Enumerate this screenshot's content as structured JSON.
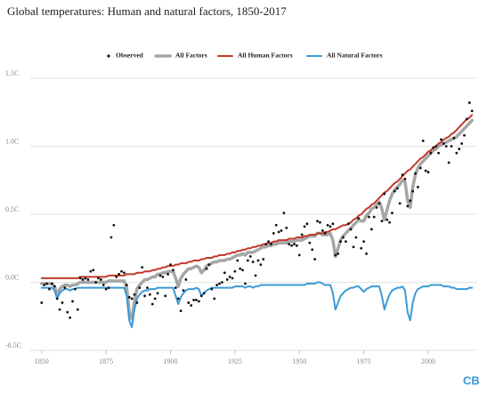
{
  "chart_data": {
    "type": "line",
    "title": "Global temperatures: Human and natural factors, 1850-2017",
    "logo": "CB",
    "grid": true,
    "legend": "top",
    "xlim": [
      1848,
      2019
    ],
    "xticks": [
      1850,
      1875,
      1900,
      1925,
      1950,
      1975,
      2000
    ],
    "ylim": [
      -0.5,
      1.5
    ],
    "yticks": [
      {
        "value": -0.5,
        "label": "-0.5C"
      },
      {
        "value": 0,
        "label": "0.0C"
      },
      {
        "value": 0.5,
        "label": "0.5C"
      },
      {
        "value": 1.0,
        "label": "1.0C"
      },
      {
        "value": 1.5,
        "label": "1.5C"
      }
    ],
    "x": [
      1850,
      1851,
      1852,
      1853,
      1854,
      1855,
      1856,
      1857,
      1858,
      1859,
      1860,
      1861,
      1862,
      1863,
      1864,
      1865,
      1866,
      1867,
      1868,
      1869,
      1870,
      1871,
      1872,
      1873,
      1874,
      1875,
      1876,
      1877,
      1878,
      1879,
      1880,
      1881,
      1882,
      1883,
      1884,
      1885,
      1886,
      1887,
      1888,
      1889,
      1890,
      1891,
      1892,
      1893,
      1894,
      1895,
      1896,
      1897,
      1898,
      1899,
      1900,
      1901,
      1902,
      1903,
      1904,
      1905,
      1906,
      1907,
      1908,
      1909,
      1910,
      1911,
      1912,
      1913,
      1914,
      1915,
      1916,
      1917,
      1918,
      1919,
      1920,
      1921,
      1922,
      1923,
      1924,
      1925,
      1926,
      1927,
      1928,
      1929,
      1930,
      1931,
      1932,
      1933,
      1934,
      1935,
      1936,
      1937,
      1938,
      1939,
      1940,
      1941,
      1942,
      1943,
      1944,
      1945,
      1946,
      1947,
      1948,
      1949,
      1950,
      1951,
      1952,
      1953,
      1954,
      1955,
      1956,
      1957,
      1958,
      1959,
      1960,
      1961,
      1962,
      1963,
      1964,
      1965,
      1966,
      1967,
      1968,
      1969,
      1970,
      1971,
      1972,
      1973,
      1974,
      1975,
      1976,
      1977,
      1978,
      1979,
      1980,
      1981,
      1982,
      1983,
      1984,
      1985,
      1986,
      1987,
      1988,
      1989,
      1990,
      1991,
      1992,
      1993,
      1994,
      1995,
      1996,
      1997,
      1998,
      1999,
      2000,
      2001,
      2002,
      2003,
      2004,
      2005,
      2006,
      2007,
      2008,
      2009,
      2010,
      2011,
      2012,
      2013,
      2014,
      2015,
      2016,
      2017
    ],
    "series": [
      {
        "name": "Observed",
        "type": "scatter",
        "color": "#111111",
        "values": [
          -0.15,
          -0.02,
          -0.01,
          -0.05,
          -0.01,
          -0.03,
          -0.12,
          -0.2,
          -0.15,
          -0.04,
          -0.22,
          -0.26,
          -0.14,
          -0.05,
          -0.2,
          0.03,
          0.02,
          0.03,
          0.02,
          0.08,
          0.09,
          0.0,
          0.03,
          0.02,
          -0.02,
          -0.05,
          -0.04,
          0.33,
          0.42,
          0.04,
          0.06,
          0.08,
          0.07,
          -0.02,
          -0.11,
          -0.12,
          -0.09,
          -0.15,
          -0.04,
          0.11,
          -0.1,
          -0.04,
          -0.09,
          -0.16,
          -0.12,
          -0.08,
          0.05,
          0.04,
          -0.1,
          0.06,
          0.13,
          0.09,
          -0.04,
          -0.12,
          -0.21,
          -0.06,
          0.02,
          -0.15,
          -0.17,
          -0.13,
          -0.13,
          -0.14,
          -0.1,
          -0.08,
          0.1,
          0.13,
          -0.05,
          -0.12,
          -0.02,
          -0.01,
          0.0,
          0.07,
          0.02,
          0.04,
          0.03,
          0.08,
          0.16,
          0.1,
          0.09,
          -0.01,
          0.16,
          0.19,
          0.15,
          0.05,
          0.16,
          0.13,
          0.17,
          0.28,
          0.3,
          0.28,
          0.36,
          0.42,
          0.37,
          0.38,
          0.51,
          0.4,
          0.28,
          0.27,
          0.28,
          0.27,
          0.2,
          0.35,
          0.41,
          0.43,
          0.29,
          0.24,
          0.17,
          0.45,
          0.44,
          0.38,
          0.36,
          0.42,
          0.41,
          0.43,
          0.2,
          0.21,
          0.3,
          0.33,
          0.3,
          0.43,
          0.39,
          0.26,
          0.33,
          0.47,
          0.25,
          0.3,
          0.21,
          0.48,
          0.39,
          0.48,
          0.55,
          0.58,
          0.45,
          0.65,
          0.46,
          0.44,
          0.51,
          0.67,
          0.69,
          0.58,
          0.79,
          0.76,
          0.56,
          0.6,
          0.67,
          0.8,
          0.7,
          0.84,
          1.04,
          0.82,
          0.81,
          0.95,
          0.99,
          1.0,
          0.95,
          1.05,
          1.02,
          1.0,
          0.88,
          1.0,
          1.06,
          0.95,
          0.98,
          1.02,
          1.08,
          1.2,
          1.32,
          1.26
        ]
      },
      {
        "name": "All Factors",
        "type": "line",
        "color": "#a6a6a6",
        "values": [
          -0.01,
          -0.01,
          -0.01,
          -0.01,
          -0.01,
          -0.03,
          -0.09,
          -0.05,
          -0.03,
          -0.02,
          -0.02,
          -0.03,
          -0.02,
          -0.02,
          -0.01,
          0.0,
          0.0,
          0.0,
          0.0,
          0.0,
          0.0,
          0.0,
          0.0,
          0.0,
          0.0,
          0.0,
          0.01,
          0.01,
          0.01,
          0.01,
          0.01,
          0.01,
          0.01,
          -0.04,
          -0.22,
          -0.27,
          -0.14,
          -0.05,
          -0.02,
          0.0,
          0.02,
          0.02,
          0.03,
          0.04,
          0.04,
          0.06,
          0.06,
          0.07,
          0.07,
          0.08,
          0.08,
          0.08,
          0.03,
          -0.03,
          0.03,
          0.06,
          0.08,
          0.1,
          0.1,
          0.11,
          0.12,
          0.11,
          0.07,
          0.09,
          0.12,
          0.13,
          0.14,
          0.15,
          0.15,
          0.16,
          0.16,
          0.16,
          0.17,
          0.17,
          0.18,
          0.19,
          0.2,
          0.2,
          0.21,
          0.2,
          0.22,
          0.22,
          0.22,
          0.23,
          0.24,
          0.25,
          0.26,
          0.26,
          0.27,
          0.27,
          0.28,
          0.28,
          0.29,
          0.29,
          0.29,
          0.29,
          0.3,
          0.3,
          0.3,
          0.31,
          0.31,
          0.31,
          0.32,
          0.33,
          0.34,
          0.34,
          0.34,
          0.36,
          0.36,
          0.35,
          0.35,
          0.35,
          0.36,
          0.31,
          0.19,
          0.25,
          0.31,
          0.34,
          0.36,
          0.38,
          0.4,
          0.42,
          0.44,
          0.46,
          0.45,
          0.45,
          0.49,
          0.51,
          0.54,
          0.55,
          0.57,
          0.59,
          0.54,
          0.46,
          0.53,
          0.6,
          0.65,
          0.68,
          0.7,
          0.72,
          0.75,
          0.74,
          0.6,
          0.55,
          0.7,
          0.79,
          0.84,
          0.87,
          0.89,
          0.91,
          0.93,
          0.95,
          0.97,
          0.98,
          1.0,
          1.01,
          1.02,
          1.03,
          1.04,
          1.05,
          1.06,
          1.07,
          1.09,
          1.11,
          1.13,
          1.15,
          1.17,
          1.19
        ]
      },
      {
        "name": "All Human Factors",
        "type": "line",
        "color": "#c0392b",
        "values": [
          0.03,
          0.03,
          0.03,
          0.03,
          0.03,
          0.03,
          0.03,
          0.03,
          0.03,
          0.03,
          0.03,
          0.03,
          0.03,
          0.03,
          0.03,
          0.04,
          0.04,
          0.04,
          0.04,
          0.04,
          0.04,
          0.04,
          0.04,
          0.04,
          0.04,
          0.04,
          0.05,
          0.05,
          0.05,
          0.05,
          0.05,
          0.05,
          0.05,
          0.06,
          0.06,
          0.06,
          0.06,
          0.07,
          0.07,
          0.07,
          0.08,
          0.08,
          0.08,
          0.09,
          0.09,
          0.1,
          0.1,
          0.11,
          0.11,
          0.12,
          0.12,
          0.12,
          0.13,
          0.13,
          0.14,
          0.14,
          0.14,
          0.15,
          0.15,
          0.16,
          0.16,
          0.16,
          0.17,
          0.17,
          0.18,
          0.18,
          0.18,
          0.19,
          0.19,
          0.2,
          0.2,
          0.2,
          0.21,
          0.21,
          0.22,
          0.22,
          0.23,
          0.23,
          0.24,
          0.24,
          0.25,
          0.25,
          0.26,
          0.26,
          0.27,
          0.27,
          0.28,
          0.28,
          0.29,
          0.29,
          0.3,
          0.3,
          0.31,
          0.31,
          0.31,
          0.31,
          0.32,
          0.32,
          0.32,
          0.33,
          0.33,
          0.33,
          0.34,
          0.34,
          0.35,
          0.35,
          0.35,
          0.36,
          0.36,
          0.36,
          0.37,
          0.37,
          0.38,
          0.39,
          0.39,
          0.4,
          0.41,
          0.42,
          0.42,
          0.43,
          0.44,
          0.46,
          0.47,
          0.49,
          0.5,
          0.52,
          0.54,
          0.55,
          0.57,
          0.58,
          0.6,
          0.62,
          0.64,
          0.66,
          0.67,
          0.69,
          0.71,
          0.73,
          0.74,
          0.76,
          0.78,
          0.8,
          0.82,
          0.83,
          0.85,
          0.87,
          0.89,
          0.91,
          0.92,
          0.94,
          0.96,
          0.97,
          0.99,
          1.0,
          1.02,
          1.03,
          1.05,
          1.06,
          1.07,
          1.09,
          1.1,
          1.12,
          1.14,
          1.16,
          1.18,
          1.2,
          1.21,
          1.23
        ]
      },
      {
        "name": "All Natural Factors",
        "type": "line",
        "color": "#3b9ad6",
        "values": [
          -0.04,
          -0.04,
          -0.04,
          -0.04,
          -0.04,
          -0.06,
          -0.12,
          -0.08,
          -0.06,
          -0.05,
          -0.05,
          -0.06,
          -0.05,
          -0.05,
          -0.04,
          -0.04,
          -0.04,
          -0.04,
          -0.04,
          -0.04,
          -0.04,
          -0.04,
          -0.04,
          -0.04,
          -0.04,
          -0.04,
          -0.04,
          -0.04,
          -0.04,
          -0.04,
          -0.04,
          -0.04,
          -0.04,
          -0.1,
          -0.28,
          -0.33,
          -0.2,
          -0.12,
          -0.09,
          -0.07,
          -0.06,
          -0.06,
          -0.05,
          -0.05,
          -0.05,
          -0.04,
          -0.04,
          -0.04,
          -0.04,
          -0.04,
          -0.04,
          -0.04,
          -0.1,
          -0.16,
          -0.11,
          -0.08,
          -0.06,
          -0.05,
          -0.05,
          -0.05,
          -0.04,
          -0.05,
          -0.1,
          -0.08,
          -0.06,
          -0.05,
          -0.04,
          -0.04,
          -0.04,
          -0.04,
          -0.04,
          -0.04,
          -0.04,
          -0.04,
          -0.04,
          -0.03,
          -0.03,
          -0.03,
          -0.03,
          -0.04,
          -0.03,
          -0.03,
          -0.04,
          -0.03,
          -0.03,
          -0.02,
          -0.02,
          -0.02,
          -0.02,
          -0.02,
          -0.02,
          -0.02,
          -0.02,
          -0.02,
          -0.02,
          -0.02,
          -0.02,
          -0.02,
          -0.02,
          -0.02,
          -0.02,
          -0.02,
          -0.02,
          -0.01,
          -0.01,
          -0.01,
          -0.01,
          0.0,
          0.0,
          -0.01,
          -0.02,
          -0.02,
          -0.02,
          -0.08,
          -0.2,
          -0.15,
          -0.1,
          -0.08,
          -0.06,
          -0.05,
          -0.04,
          -0.04,
          -0.03,
          -0.03,
          -0.05,
          -0.07,
          -0.05,
          -0.04,
          -0.03,
          -0.03,
          -0.03,
          -0.03,
          -0.1,
          -0.2,
          -0.14,
          -0.09,
          -0.06,
          -0.05,
          -0.04,
          -0.04,
          -0.03,
          -0.06,
          -0.22,
          -0.28,
          -0.15,
          -0.08,
          -0.05,
          -0.04,
          -0.03,
          -0.03,
          -0.03,
          -0.02,
          -0.02,
          -0.02,
          -0.02,
          -0.02,
          -0.03,
          -0.03,
          -0.03,
          -0.04,
          -0.04,
          -0.05,
          -0.05,
          -0.05,
          -0.05,
          -0.05,
          -0.04,
          -0.04
        ]
      }
    ]
  }
}
